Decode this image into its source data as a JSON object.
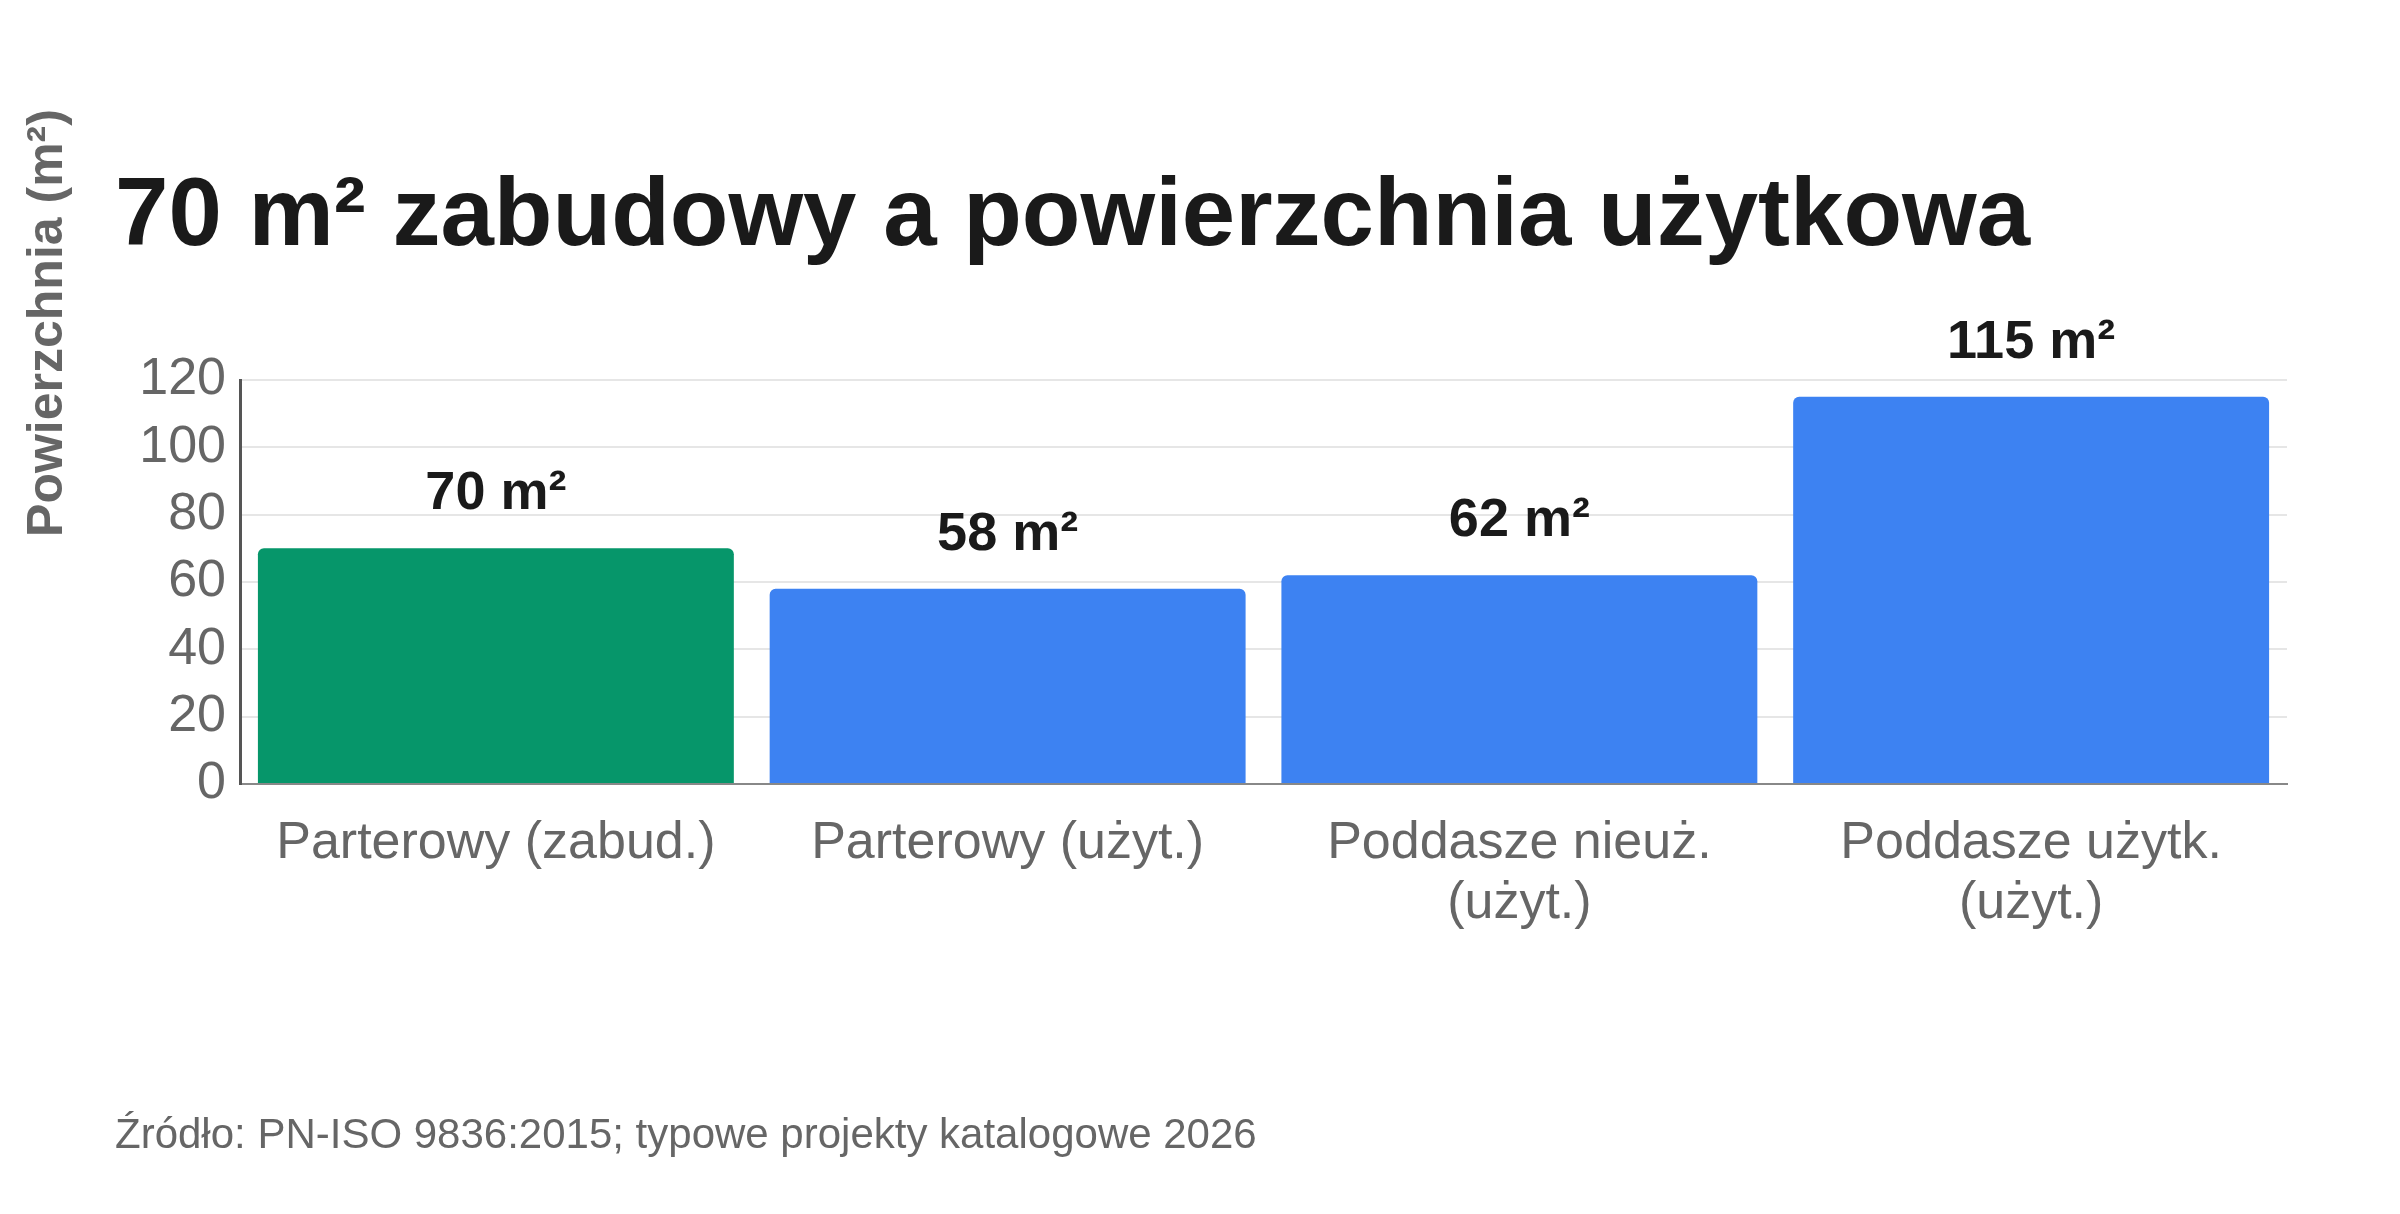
{
  "chart_data": {
    "type": "bar",
    "title": "70 m² zabudowy a powierzchnia użytkowa",
    "ylabel": "Powierzchnia (m²)",
    "categories": [
      "Parterowy (zabud.)",
      "Parterowy (użyt.)",
      "Poddasze nieuż. (użyt.)",
      "Poddasze użytk. (użyt.)"
    ],
    "values": [
      70,
      58,
      62,
      115
    ],
    "colors": [
      "#06966a",
      "#3d82f2",
      "#3d82f2",
      "#3d82f2"
    ],
    "value_labels": [
      "70 m²",
      "58 m²",
      "62 m²",
      "115 m²"
    ],
    "ylim": [
      0,
      120
    ],
    "yticks": [
      0,
      20,
      40,
      60,
      80,
      100,
      120
    ],
    "grid": "y",
    "annotations": [
      "Źródło: PN-ISO 9836:2015; typowe projekty katalogowe 2026"
    ]
  }
}
